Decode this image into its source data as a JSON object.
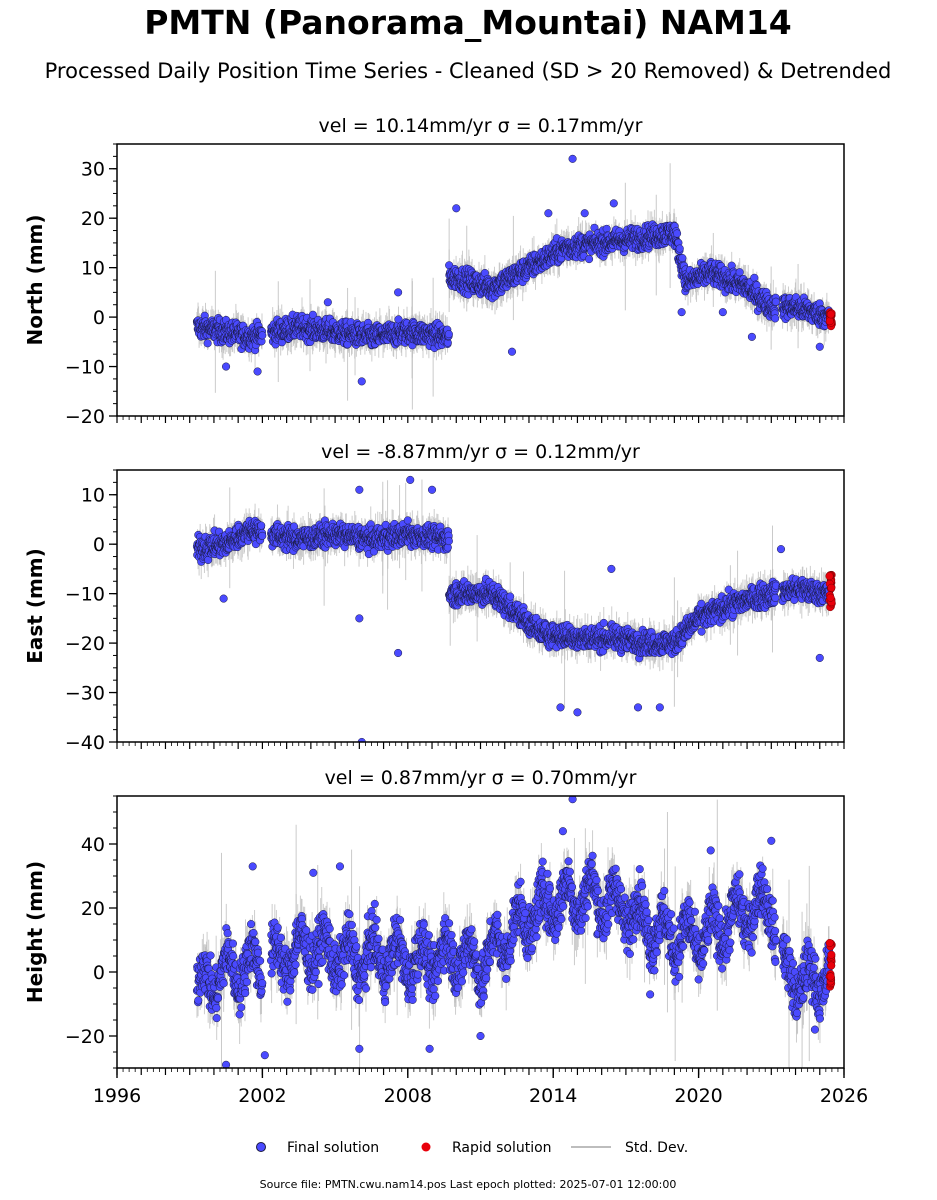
{
  "title": "PMTN (Panorama_Mountai) NAM14",
  "subtitle": "Processed Daily Position Time Series - Cleaned (SD > 20 Removed) & Detrended",
  "colors": {
    "final": "#4a4aff",
    "final_edge": "#1a1a40",
    "rapid": "#e8000b",
    "stddev": "#bdbdbd",
    "axis": "#000000"
  },
  "legend": {
    "final_label": "Final solution",
    "rapid_label": "Rapid solution",
    "stddev_label": "Std. Dev.",
    "placement": "bottom-center"
  },
  "footer": "Source file: PMTN.cwu.nam14.pos  Last epoch plotted: 2025-07-01 12:00:00",
  "chart_data": [
    {
      "type": "scatter",
      "component": "north",
      "title": "vel = 10.14mm/yr   σ = 0.17mm/yr",
      "ylabel": "North (mm)",
      "ylim": [
        -20,
        35
      ],
      "yticks": [
        30,
        20,
        10,
        0,
        -10,
        -20
      ],
      "ytick_labels": [
        "30",
        "20",
        "10",
        "0",
        "−10",
        "−20"
      ],
      "xlim": [
        1996,
        2026
      ],
      "x_tick_labels_shown": false,
      "series": [
        {
          "name": "Final solution",
          "trend_points": [
            {
              "x": 1999.3,
              "y": -2
            },
            {
              "x": 2000.5,
              "y": -3
            },
            {
              "x": 2001.5,
              "y": -4
            },
            {
              "x": 2002.5,
              "y": -3
            },
            {
              "x": 2003.5,
              "y": -2
            },
            {
              "x": 2005.0,
              "y": -3
            },
            {
              "x": 2006.5,
              "y": -4
            },
            {
              "x": 2008.0,
              "y": -3
            },
            {
              "x": 2009.7,
              "y": -4
            },
            {
              "x": 2010.0,
              "y": 8
            },
            {
              "x": 2011.5,
              "y": 6
            },
            {
              "x": 2013.0,
              "y": 10
            },
            {
              "x": 2014.5,
              "y": 14
            },
            {
              "x": 2016.0,
              "y": 15
            },
            {
              "x": 2017.5,
              "y": 16
            },
            {
              "x": 2019.0,
              "y": 17
            },
            {
              "x": 2019.5,
              "y": 7
            },
            {
              "x": 2020.5,
              "y": 9
            },
            {
              "x": 2022.0,
              "y": 6
            },
            {
              "x": 2023.0,
              "y": 2
            },
            {
              "x": 2024.0,
              "y": 2
            },
            {
              "x": 2025.4,
              "y": 0
            }
          ]
        },
        {
          "name": "Rapid solution",
          "trend_points": [
            {
              "x": 2025.4,
              "y": 0
            },
            {
              "x": 2025.5,
              "y": -1
            }
          ],
          "y_range": [
            -2,
            1
          ]
        }
      ],
      "outliers": [
        {
          "x": 2010.0,
          "y": 22
        },
        {
          "x": 2014.8,
          "y": 32
        },
        {
          "x": 2015.3,
          "y": 21
        },
        {
          "x": 2013.8,
          "y": 21
        },
        {
          "x": 2016.5,
          "y": 23
        },
        {
          "x": 2012.3,
          "y": -7
        },
        {
          "x": 2006.1,
          "y": -13
        },
        {
          "x": 2004.7,
          "y": 3
        },
        {
          "x": 2007.6,
          "y": 5
        },
        {
          "x": 2000.5,
          "y": -10
        },
        {
          "x": 2001.8,
          "y": -11
        },
        {
          "x": 2019.3,
          "y": 1
        },
        {
          "x": 2021.0,
          "y": 1
        },
        {
          "x": 2022.2,
          "y": -4
        },
        {
          "x": 2025.0,
          "y": -6
        }
      ]
    },
    {
      "type": "scatter",
      "component": "east",
      "title": "vel = -8.87mm/yr   σ = 0.12mm/yr",
      "ylabel": "East (mm)",
      "ylim": [
        -40,
        15
      ],
      "yticks": [
        10,
        0,
        -10,
        -20,
        -30,
        -40
      ],
      "ytick_labels": [
        "10",
        "0",
        "−10",
        "−20",
        "−30",
        "−40"
      ],
      "xlim": [
        1996,
        2026
      ],
      "x_tick_labels_shown": false,
      "series": [
        {
          "name": "Final solution",
          "trend_points": [
            {
              "x": 1999.3,
              "y": -1
            },
            {
              "x": 2000.5,
              "y": 0
            },
            {
              "x": 2001.5,
              "y": 3
            },
            {
              "x": 2002.3,
              "y": 2
            },
            {
              "x": 2003.5,
              "y": 1
            },
            {
              "x": 2005.0,
              "y": 2
            },
            {
              "x": 2006.5,
              "y": 1
            },
            {
              "x": 2008.0,
              "y": 2
            },
            {
              "x": 2009.7,
              "y": 1
            },
            {
              "x": 2010.0,
              "y": -10
            },
            {
              "x": 2011.5,
              "y": -10
            },
            {
              "x": 2012.5,
              "y": -14
            },
            {
              "x": 2013.5,
              "y": -18
            },
            {
              "x": 2015.0,
              "y": -19
            },
            {
              "x": 2016.5,
              "y": -19
            },
            {
              "x": 2018.0,
              "y": -20
            },
            {
              "x": 2019.0,
              "y": -20
            },
            {
              "x": 2020.0,
              "y": -15
            },
            {
              "x": 2021.5,
              "y": -12
            },
            {
              "x": 2023.0,
              "y": -10
            },
            {
              "x": 2024.0,
              "y": -9
            },
            {
              "x": 2025.4,
              "y": -10
            }
          ]
        },
        {
          "name": "Rapid solution",
          "trend_points": [
            {
              "x": 2025.4,
              "y": -10
            },
            {
              "x": 2025.5,
              "y": -10
            }
          ],
          "y_range": [
            -13,
            -6
          ]
        }
      ],
      "outliers": [
        {
          "x": 2006.0,
          "y": 11
        },
        {
          "x": 2008.1,
          "y": 13
        },
        {
          "x": 2009.0,
          "y": 11
        },
        {
          "x": 2006.0,
          "y": -15
        },
        {
          "x": 2006.1,
          "y": -40
        },
        {
          "x": 2007.6,
          "y": -22
        },
        {
          "x": 2014.3,
          "y": -33
        },
        {
          "x": 2016.4,
          "y": -5
        },
        {
          "x": 2017.5,
          "y": -33
        },
        {
          "x": 2018.4,
          "y": -33
        },
        {
          "x": 2000.4,
          "y": -11
        },
        {
          "x": 2015.0,
          "y": -34
        },
        {
          "x": 2025.0,
          "y": -23
        },
        {
          "x": 2023.4,
          "y": -1
        }
      ]
    },
    {
      "type": "scatter",
      "component": "height",
      "title": "vel = 0.87mm/yr   σ = 0.70mm/yr",
      "ylabel": "Height (mm)",
      "ylim": [
        -30,
        55
      ],
      "yticks": [
        40,
        20,
        0,
        -20
      ],
      "ytick_labels": [
        "40",
        "20",
        "0",
        "−20"
      ],
      "xlim": [
        1996,
        2026
      ],
      "xticks": [
        1996,
        2002,
        2008,
        2014,
        2020,
        2026
      ],
      "xtick_labels": [
        "1996",
        "2002",
        "2008",
        "2014",
        "2020",
        "2026"
      ],
      "x_tick_labels_shown": true,
      "series": [
        {
          "name": "Final solution",
          "trend_points": [
            {
              "x": 1999.3,
              "y": -5
            },
            {
              "x": 2000.5,
              "y": 0
            },
            {
              "x": 2001.5,
              "y": 2
            },
            {
              "x": 2002.5,
              "y": 3
            },
            {
              "x": 2004.0,
              "y": 8
            },
            {
              "x": 2005.5,
              "y": 4
            },
            {
              "x": 2007.0,
              "y": 5
            },
            {
              "x": 2008.5,
              "y": 3
            },
            {
              "x": 2010.0,
              "y": 6
            },
            {
              "x": 2011.0,
              "y": 2
            },
            {
              "x": 2012.5,
              "y": 14
            },
            {
              "x": 2014.0,
              "y": 22
            },
            {
              "x": 2015.5,
              "y": 24
            },
            {
              "x": 2017.0,
              "y": 20
            },
            {
              "x": 2018.5,
              "y": 12
            },
            {
              "x": 2020.0,
              "y": 10
            },
            {
              "x": 2021.5,
              "y": 17
            },
            {
              "x": 2023.0,
              "y": 22
            },
            {
              "x": 2023.5,
              "y": 0
            },
            {
              "x": 2024.5,
              "y": -4
            },
            {
              "x": 2025.4,
              "y": 0
            }
          ]
        },
        {
          "name": "Rapid solution",
          "trend_points": [
            {
              "x": 2025.4,
              "y": 2
            },
            {
              "x": 2025.5,
              "y": 2
            }
          ],
          "y_range": [
            -5,
            10
          ]
        }
      ],
      "outliers": [
        {
          "x": 2001.6,
          "y": 33
        },
        {
          "x": 2004.1,
          "y": 31
        },
        {
          "x": 2005.2,
          "y": 33
        },
        {
          "x": 2014.8,
          "y": 54
        },
        {
          "x": 2014.4,
          "y": 44
        },
        {
          "x": 2020.5,
          "y": 38
        },
        {
          "x": 2023.0,
          "y": 41
        },
        {
          "x": 2000.5,
          "y": -29
        },
        {
          "x": 2006.0,
          "y": -24
        },
        {
          "x": 2008.9,
          "y": -24
        },
        {
          "x": 2011.0,
          "y": -20
        },
        {
          "x": 2018.0,
          "y": -7
        },
        {
          "x": 2002.1,
          "y": -26
        },
        {
          "x": 2024.8,
          "y": -18
        }
      ]
    }
  ]
}
